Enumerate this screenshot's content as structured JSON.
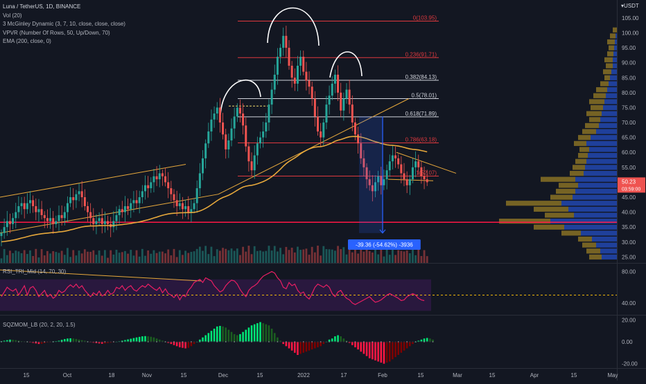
{
  "header": {
    "symbol": "Luna / TetherUS, 1D, BINANCE",
    "indicators": [
      "Vol (20)",
      "3 McGinley Dynamic (3, 7, 10, close, close, close)",
      "VPVR (Number Of Rows, 50, Up/Down, 70)",
      "EMA (200, close, 0)"
    ],
    "currency": "USDT",
    "currency_caret": "▾"
  },
  "chart_data": [
    {
      "type": "candlestick",
      "title": "Luna / TetherUS, 1D, BINANCE",
      "ylim": [
        23,
        111
      ],
      "y_ticks": [
        "105.00",
        "100.00",
        "95.00",
        "90.00",
        "85.00",
        "80.00",
        "75.00",
        "70.00",
        "65.00",
        "60.00",
        "55.00",
        "50.00",
        "45.00",
        "40.00",
        "35.00",
        "30.00",
        "25.00"
      ],
      "y_tick_values": [
        105,
        100,
        95,
        90,
        85,
        80,
        75,
        70,
        65,
        60,
        55,
        50,
        45,
        40,
        35,
        30,
        25
      ],
      "x_ticks": [
        "15",
        "Oct",
        "18",
        "Nov",
        "15",
        "Dec",
        "15",
        "2022",
        "17",
        "Feb",
        "15",
        "Mar",
        "15",
        "Apr",
        "15",
        "May"
      ],
      "last_price": "50.23",
      "countdown": "03:59:00",
      "colors": {
        "up": "#26a69a",
        "down": "#ef5350",
        "fib": "#e0393e",
        "fib_neutral": "#d1d4dc",
        "trend": "#e8a93c",
        "ema": "#e8a93c",
        "vpvr_up": "#2962ff",
        "vpvr_down": "#c9a227"
      },
      "fib_levels": [
        {
          "label": "0(103.95)",
          "value": 103.95
        },
        {
          "label": "0.236(91.71)",
          "value": 91.71
        },
        {
          "label": "0.382(84.13)",
          "value": 84.13
        },
        {
          "label": "0.5(78.01)",
          "value": 78.01
        },
        {
          "label": "0.618(71.89)",
          "value": 71.89
        },
        {
          "label": "0.786(63.18)",
          "value": 63.18
        },
        {
          "label": "1(52.07)",
          "value": 52.07
        }
      ],
      "support_level": 36.6,
      "measure_label": "-39.36 (-54.62%) -3936",
      "closes": [
        33,
        35,
        37,
        36,
        38,
        40,
        42,
        43,
        41,
        43,
        44,
        42,
        40,
        41,
        39,
        38,
        37,
        38,
        36,
        37,
        39,
        38,
        40,
        43,
        45,
        44,
        46,
        47,
        45,
        42,
        40,
        38,
        36,
        37,
        38,
        36,
        37,
        36,
        35,
        37,
        39,
        41,
        40,
        42,
        41,
        43,
        44,
        43,
        45,
        47,
        49,
        48,
        50,
        52,
        51,
        53,
        52,
        50,
        48,
        46,
        44,
        42,
        43,
        41,
        42,
        40,
        41,
        43,
        48,
        53,
        58,
        63,
        67,
        71,
        73,
        75,
        70,
        66,
        61,
        64,
        68,
        72,
        75,
        73,
        69,
        62,
        57,
        54,
        59,
        63,
        65,
        67,
        70,
        76,
        81,
        86,
        92,
        95,
        99,
        95,
        89,
        85,
        83,
        89,
        92,
        87,
        84,
        82,
        78,
        72,
        67,
        65,
        70,
        76,
        79,
        83,
        86,
        80,
        74,
        78,
        81,
        76,
        70,
        66,
        63,
        58,
        55,
        51,
        49,
        47,
        50,
        52,
        49,
        51,
        54,
        57,
        59,
        58,
        56,
        53,
        51,
        49,
        51,
        55,
        57,
        55,
        52,
        51,
        50
      ]
    },
    {
      "type": "line",
      "title": "RSI_TRI_Mid (14, 70, 30)",
      "ylim": [
        25,
        90
      ],
      "y_ticks": [
        "80.00",
        "40.00"
      ],
      "y_tick_values": [
        80,
        40
      ],
      "mid_level": 50,
      "colors": {
        "line": "#e91e63",
        "band": "#7b1fa2",
        "mid": "#f0b90b"
      },
      "values": [
        48,
        54,
        60,
        57,
        55,
        58,
        50,
        56,
        62,
        50,
        59,
        61,
        56,
        48,
        52,
        56,
        48,
        51,
        46,
        49,
        56,
        53,
        55,
        60,
        63,
        60,
        64,
        59,
        62,
        56,
        52,
        48,
        53,
        50,
        55,
        49,
        51,
        56,
        51,
        53,
        60,
        58,
        62,
        56,
        60,
        62,
        57,
        55,
        59,
        62,
        60,
        64,
        61,
        58,
        56,
        60,
        53,
        58,
        52,
        50,
        47,
        51,
        44,
        50,
        48,
        56,
        60,
        66,
        68,
        70,
        66,
        72,
        70,
        68,
        62,
        58,
        54,
        56,
        62,
        66,
        69,
        68,
        64,
        57,
        52,
        48,
        56,
        60,
        62,
        65,
        70,
        74,
        76,
        78,
        80,
        78,
        72,
        68,
        60,
        58,
        66,
        62,
        64,
        56,
        52,
        54,
        48,
        45,
        52,
        60,
        64,
        62,
        60,
        63,
        60,
        52,
        48,
        54,
        56,
        50,
        46,
        44,
        40,
        38,
        40,
        42,
        44,
        46,
        48,
        44,
        41,
        42,
        44,
        47,
        50,
        52,
        50,
        48,
        46,
        43,
        44,
        48,
        50,
        52,
        50,
        46,
        44,
        43
      ]
    },
    {
      "type": "bar",
      "title": "SQZMOM_LB (20, 2, 20, 1.5)",
      "ylim": [
        -24,
        24
      ],
      "y_ticks": [
        "20.00",
        "0.00",
        "-20.00"
      ],
      "y_tick_values": [
        20,
        0,
        -20
      ],
      "colors": {
        "up_strong": "#00e676",
        "up_weak": "#1b5e20",
        "down_strong": "#ff1744",
        "down_weak": "#7f0000"
      },
      "values": [
        0.5,
        1,
        1.5,
        2,
        1.8,
        1.5,
        1,
        0.6,
        0.3,
        0,
        -0.5,
        -1,
        -1.5,
        -2,
        -1.8,
        -1.2,
        -0.6,
        -0.2,
        0.2,
        0.6,
        1,
        1.8,
        2.5,
        3,
        3.2,
        3,
        2.6,
        2,
        1.5,
        1,
        0.4,
        -0.2,
        -0.8,
        -1.2,
        -1.5,
        -1.8,
        -1.6,
        -1.2,
        -0.8,
        -0.4,
        0,
        0.5,
        1,
        1.6,
        2.2,
        2.8,
        3.4,
        4,
        4.5,
        5,
        5.2,
        5,
        4.6,
        4,
        3,
        2,
        1,
        0,
        -1,
        -2,
        -3,
        -4,
        -5,
        -5.5,
        -6,
        -5.5,
        -4,
        -2,
        0,
        2,
        4,
        6,
        8,
        10,
        12,
        14,
        14.5,
        14,
        13,
        11,
        9,
        7,
        6,
        7,
        9,
        11,
        13,
        15,
        16,
        17,
        18,
        17,
        16,
        15,
        12,
        8,
        4,
        1,
        -2,
        -4,
        -6,
        -8,
        -10,
        -12,
        -11,
        -10,
        -9,
        -8,
        -7,
        -6,
        -5,
        -4,
        -2,
        0,
        2,
        3,
        5,
        6,
        5,
        3,
        1,
        -1,
        -3,
        -5,
        -7,
        -9,
        -11,
        -13,
        -15,
        -16,
        -17,
        -18,
        -19,
        -20,
        -19,
        -18,
        -16,
        -14,
        -12,
        -10,
        -8,
        -6,
        -4,
        -2,
        0,
        1,
        2,
        3,
        3.5,
        3,
        2
      ]
    }
  ]
}
